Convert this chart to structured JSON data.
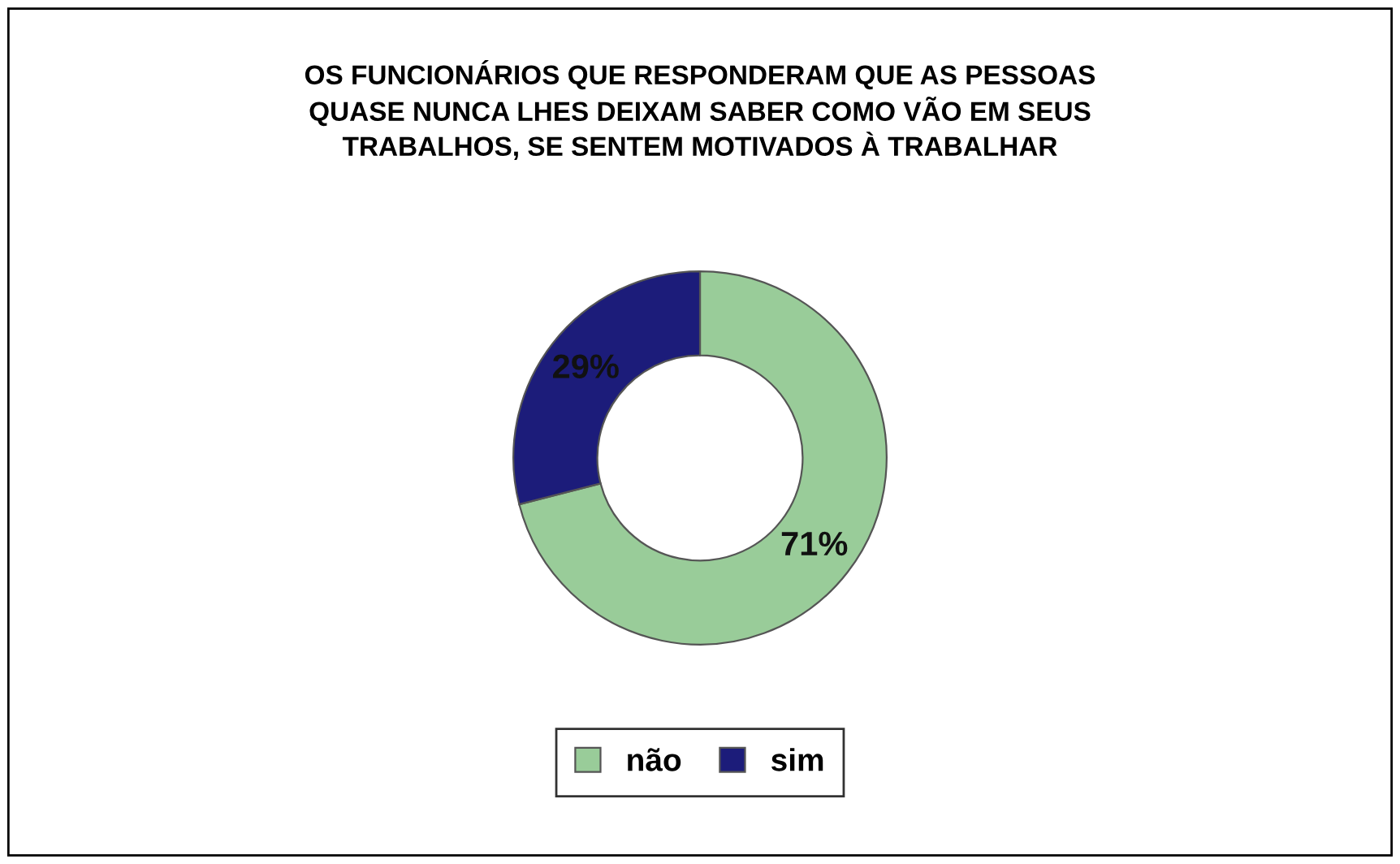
{
  "chart_data": {
    "type": "donut",
    "title": "OS FUNCIONÁRIOS QUE RESPONDERAM QUE AS PESSOAS\nQUASE NUNCA LHES DEIXAM SABER COMO VÃO EM SEUS\nTRABALHOS, SE SENTEM MOTIVADOS À TRABALHAR",
    "categories": [
      "não",
      "sim"
    ],
    "values": [
      71,
      29
    ],
    "colors": [
      "#99cc99",
      "#1c1c7a"
    ],
    "value_labels": [
      "71%",
      "29%"
    ],
    "legend": "bottom"
  }
}
